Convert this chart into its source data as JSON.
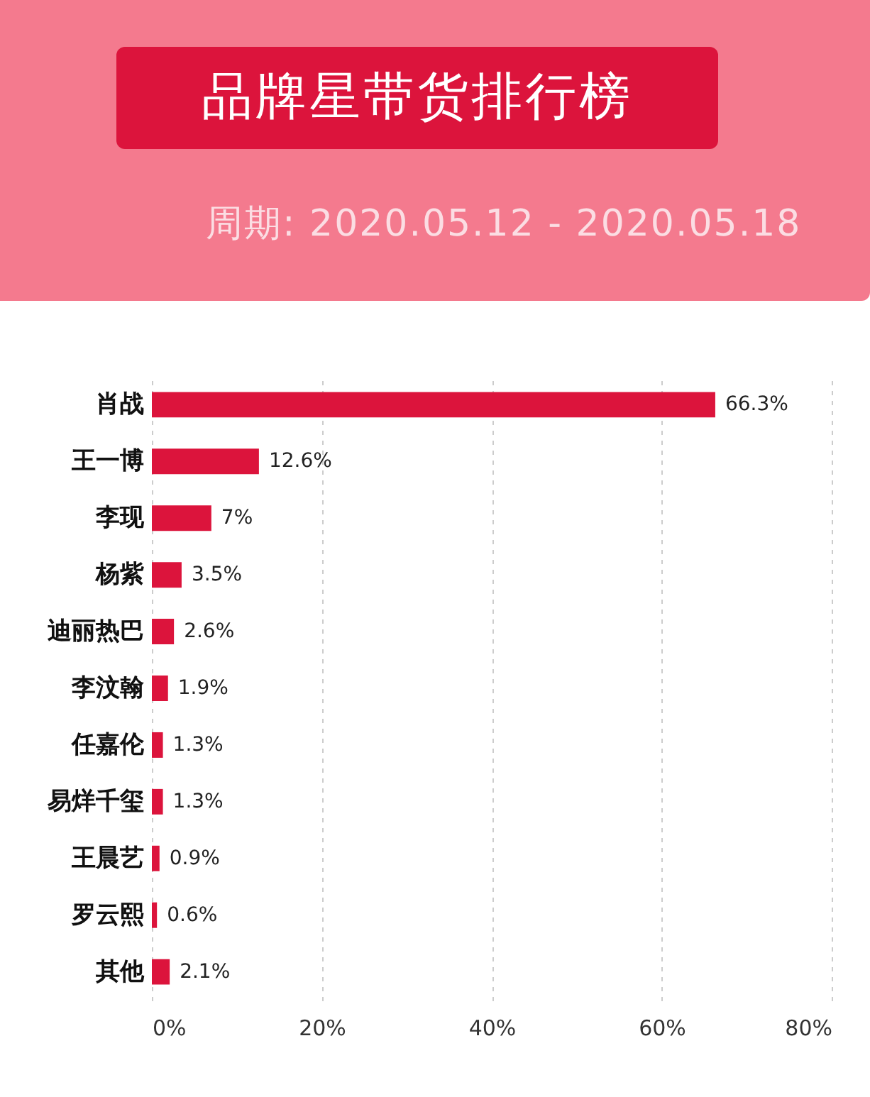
{
  "chart_data": {
    "type": "bar",
    "orientation": "horizontal",
    "title": "品牌星带货排行榜",
    "subtitle": "周期: 2020.05.12 - 2020.05.18",
    "categories": [
      "肖战",
      "王一博",
      "李现",
      "杨紫",
      "迪丽热巴",
      "李汶翰",
      "任嘉伦",
      "易烊千玺",
      "王晨艺",
      "罗云熙",
      "其他"
    ],
    "values": [
      66.3,
      12.6,
      7,
      3.5,
      2.6,
      1.9,
      1.3,
      1.3,
      0.9,
      0.6,
      2.1
    ],
    "value_labels": [
      "66.3%",
      "12.6%",
      "7%",
      "3.5%",
      "2.6%",
      "1.9%",
      "1.3%",
      "1.3%",
      "0.9%",
      "0.6%",
      "2.1%"
    ],
    "color": "#dc143c",
    "xlim": [
      0,
      80
    ],
    "xticks": [
      {
        "value": 0,
        "label": "0%"
      },
      {
        "value": 20,
        "label": "20%"
      },
      {
        "value": 40,
        "label": "40%"
      },
      {
        "value": 60,
        "label": "60%"
      },
      {
        "value": 80,
        "label": "80%"
      }
    ],
    "grid": "x"
  }
}
